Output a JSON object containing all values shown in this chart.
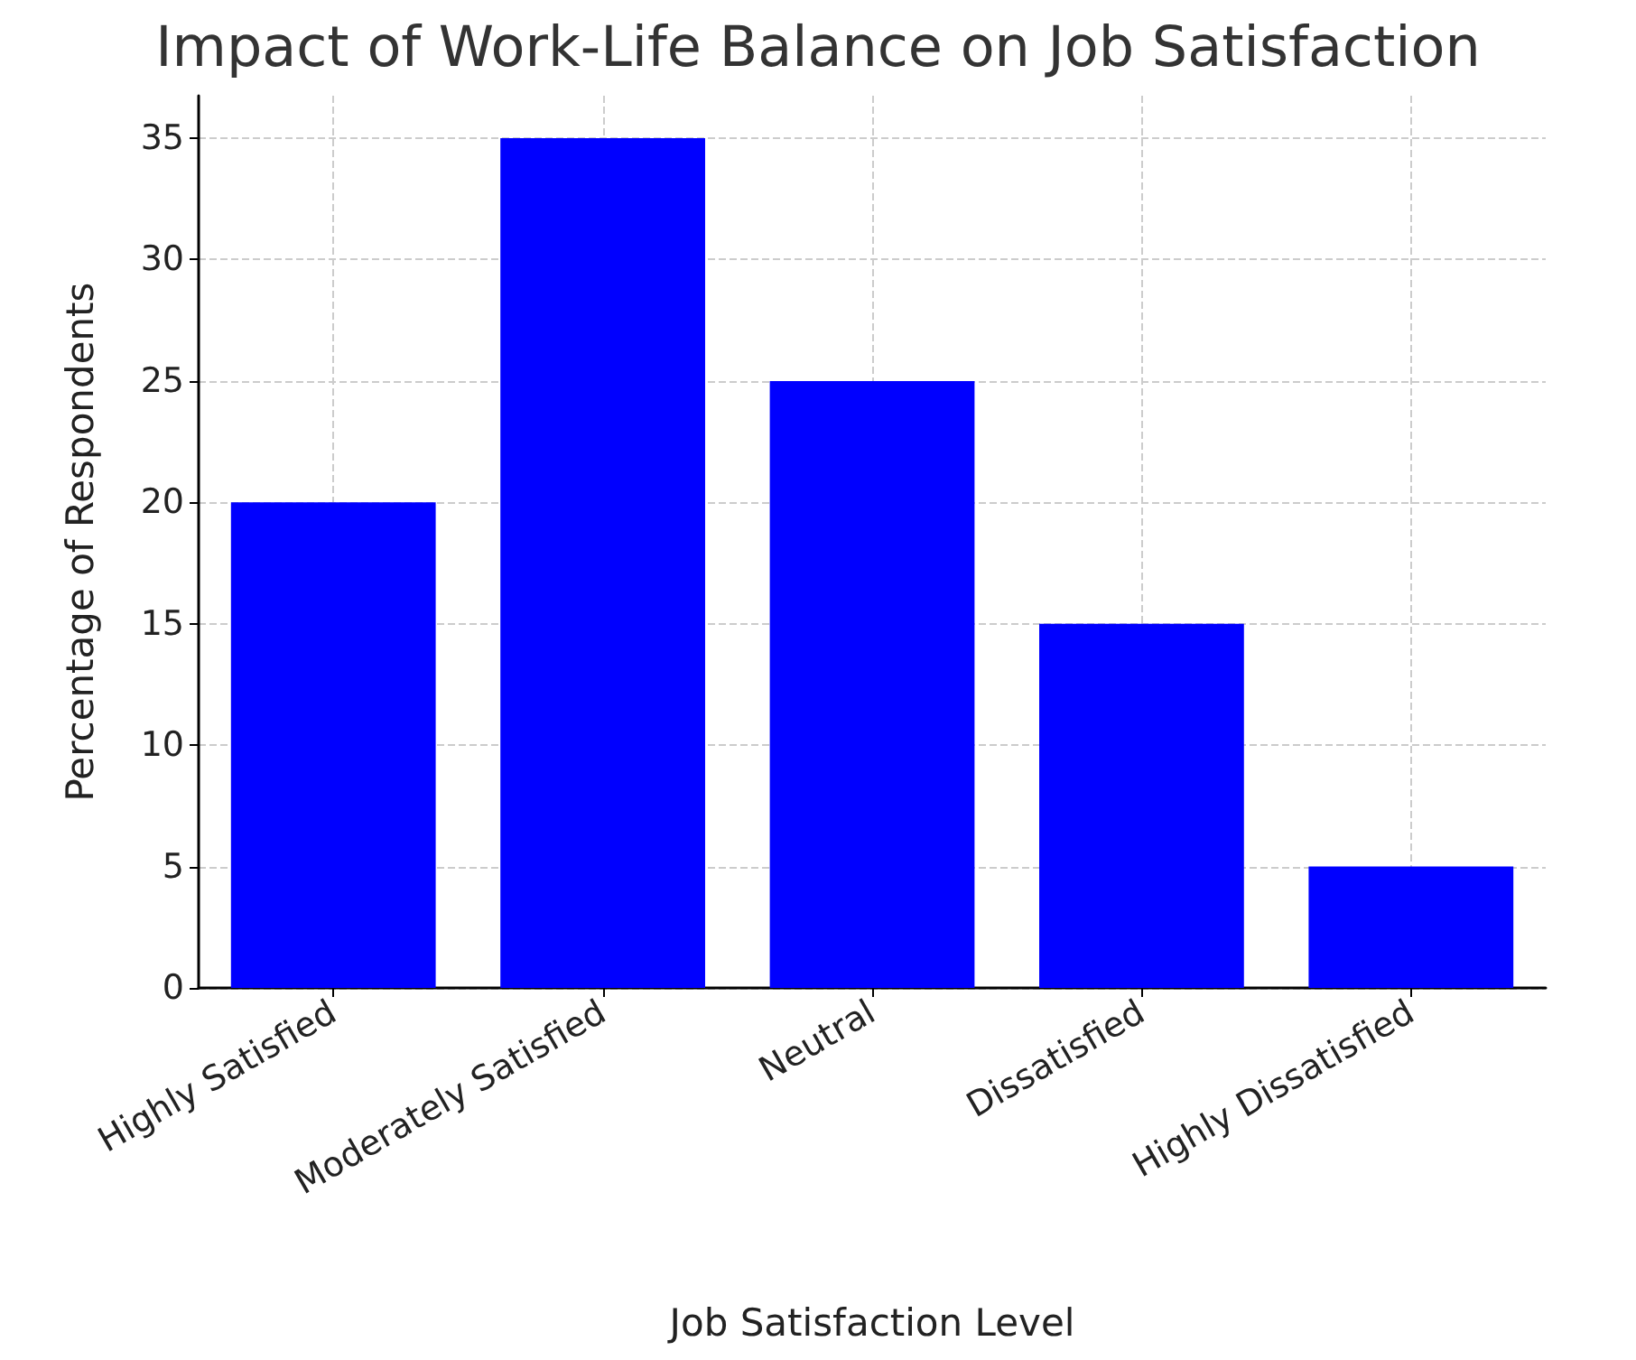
{
  "chart_data": {
    "type": "bar",
    "title": "Impact of Work-Life Balance on Job Satisfaction",
    "xlabel": "Job Satisfaction Level",
    "ylabel": "Percentage of Respondents",
    "categories": [
      "Highly Satisfied",
      "Moderately Satisfied",
      "Neutral",
      "Dissatisfied",
      "Highly Dissatisfied"
    ],
    "values": [
      20,
      35,
      25,
      15,
      5
    ],
    "color": "#0000ff",
    "ylim": [
      0,
      36.75
    ],
    "yticks": [
      0,
      5,
      10,
      15,
      20,
      25,
      30,
      35
    ],
    "grid": true
  }
}
